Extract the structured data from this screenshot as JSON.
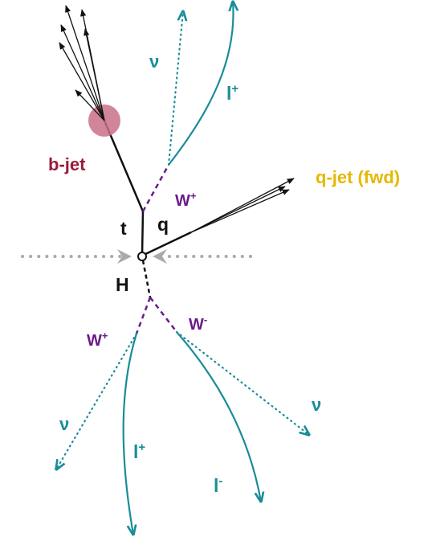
{
  "colors": {
    "black": "#111111",
    "teal": "#1a8c99",
    "purple": "#6a1b8a",
    "maroon": "#9b1a3a",
    "gold": "#e6b800",
    "grey": "#aaaaaa",
    "pink": "#c97088"
  },
  "labels": {
    "b_jet": "b-jet",
    "q_jet": "q-jet (fwd)",
    "t": "t",
    "q": "q",
    "H": "H",
    "w_plus_top": {
      "base": "W",
      "sup": "+"
    },
    "w_plus_bottom": {
      "base": "W",
      "sup": "+"
    },
    "w_minus": {
      "base": "W",
      "sup": "-"
    },
    "nu_top": "ν",
    "nu_left": "ν",
    "nu_right": "ν",
    "l_plus_top": {
      "base": "l",
      "sup": "+"
    },
    "l_plus_bottom": {
      "base": "l",
      "sup": "+"
    },
    "l_minus": {
      "base": "l",
      "sup": "-"
    }
  }
}
